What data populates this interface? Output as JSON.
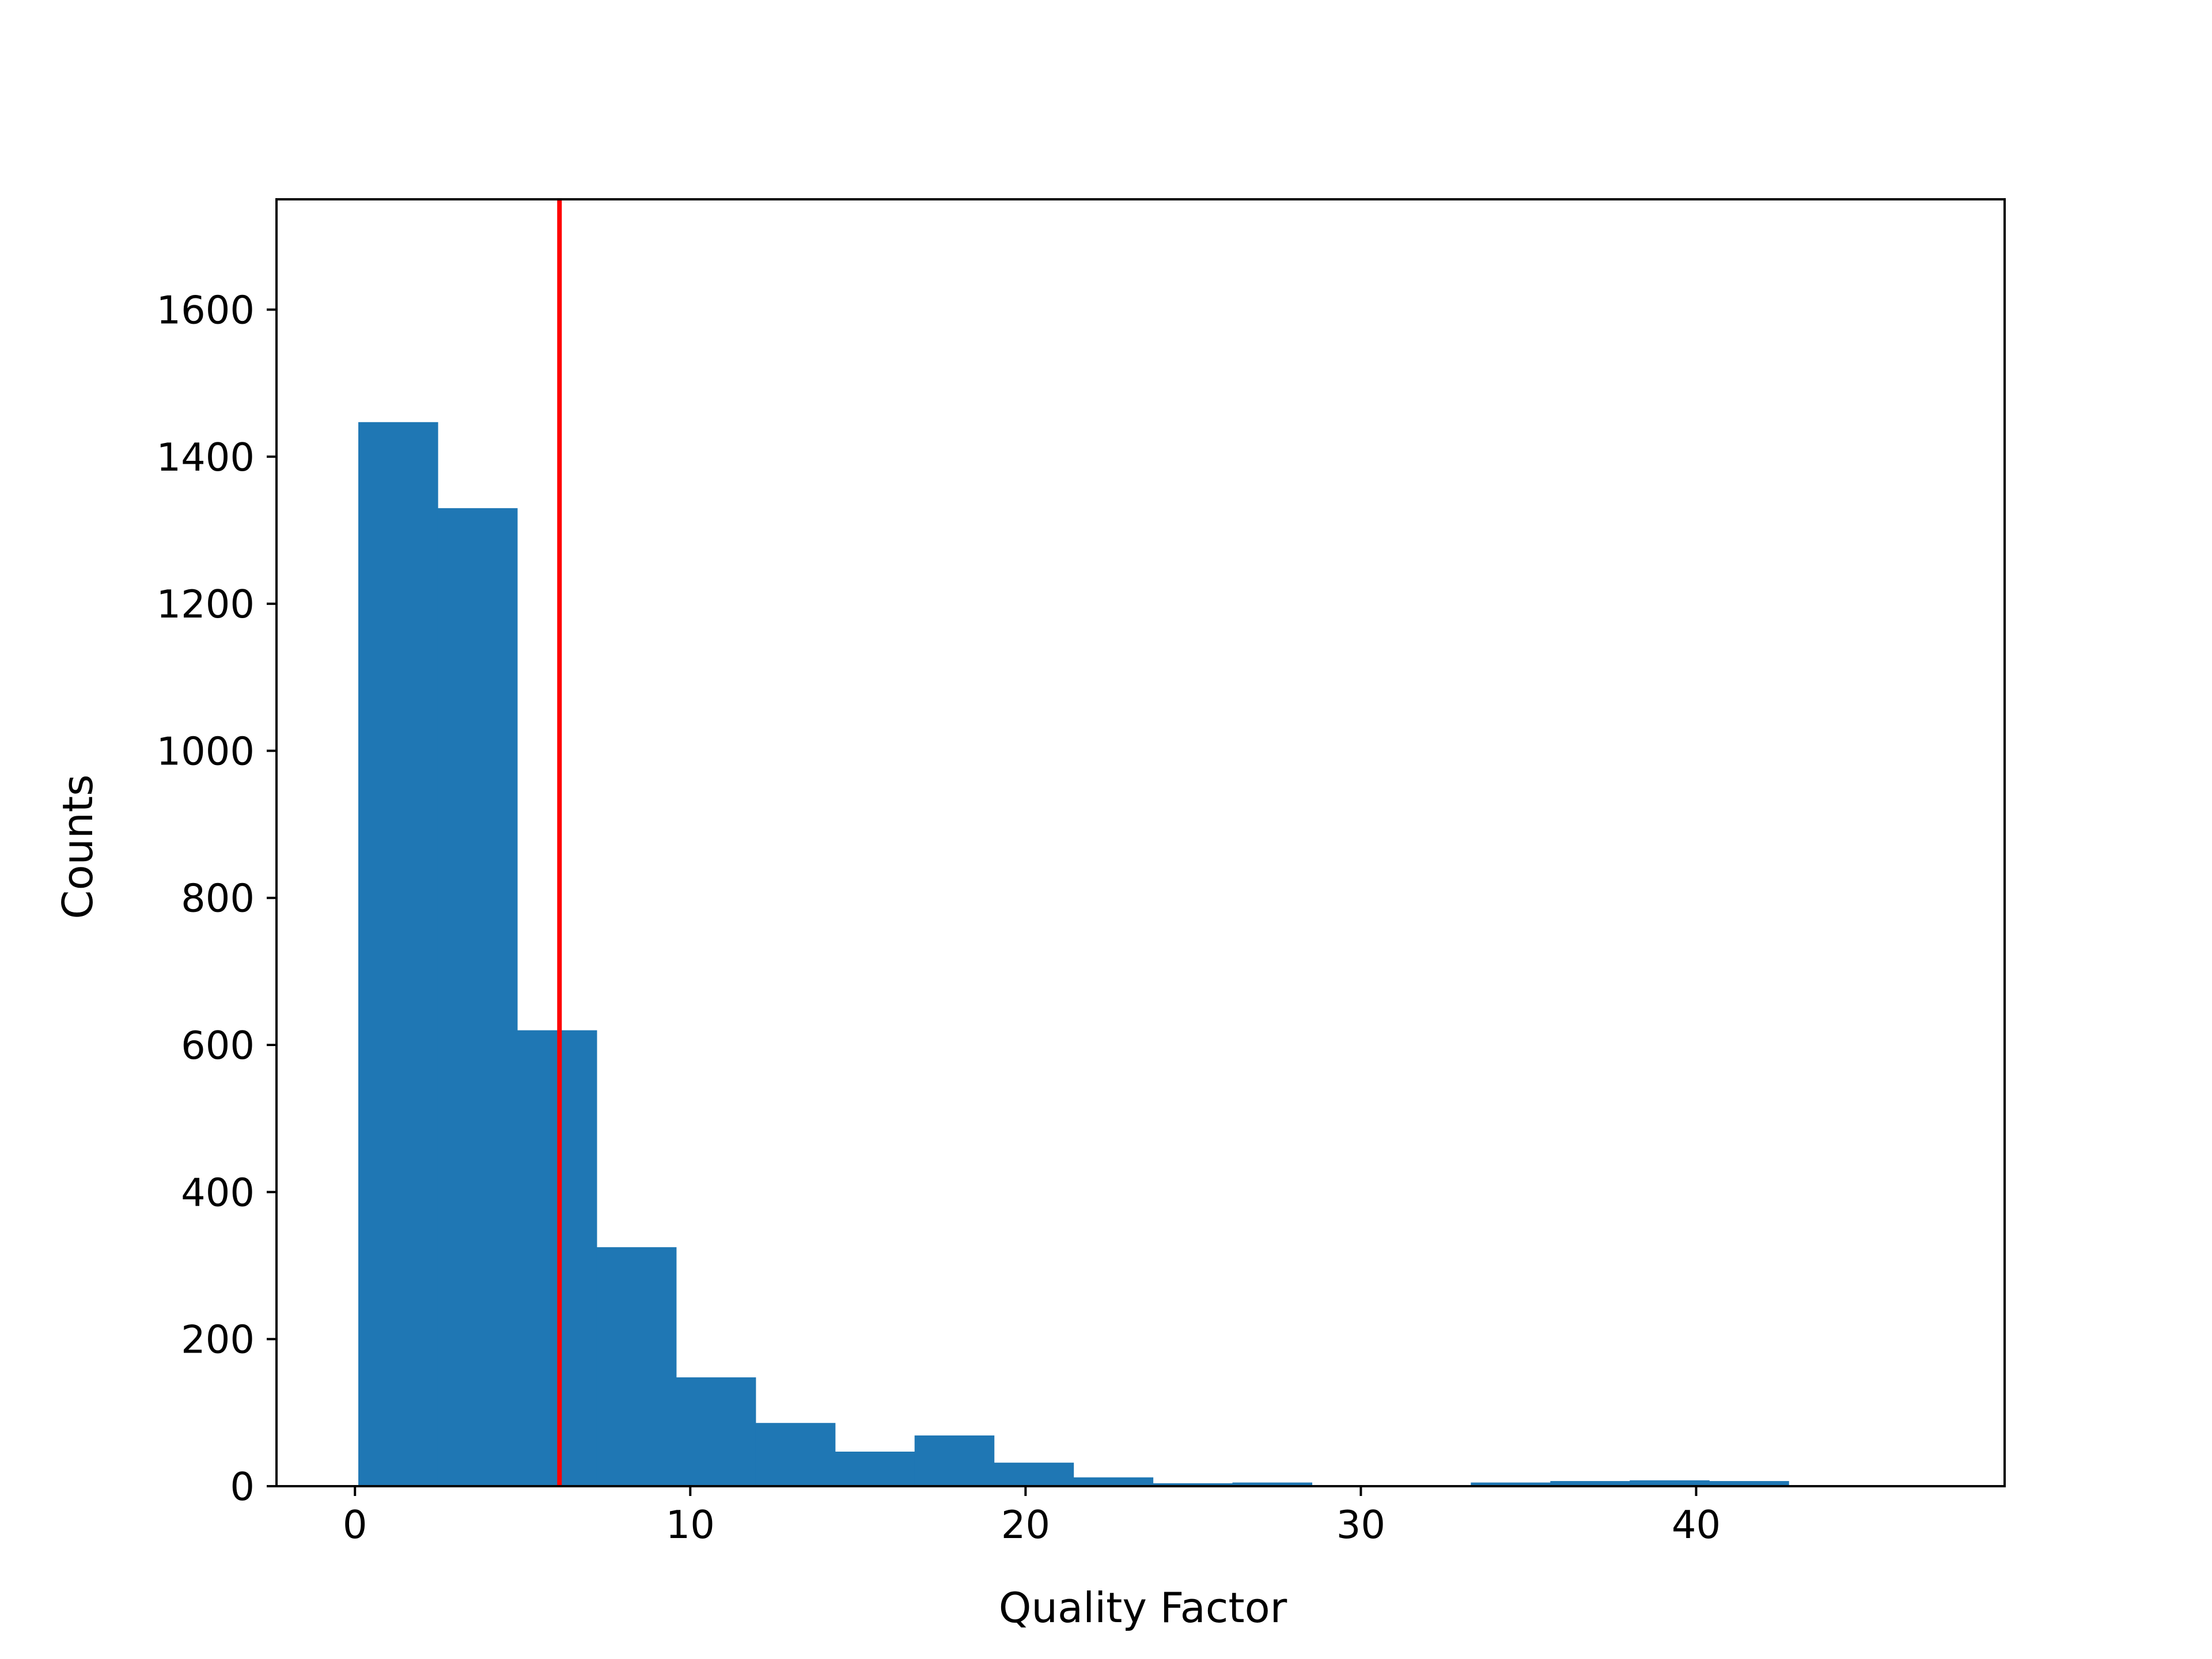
{
  "chart_data": {
    "type": "bar",
    "title": "",
    "xlabel": "Quality Factor",
    "ylabel": "Counts",
    "xlim": [
      -2.34,
      49.2
    ],
    "ylim": [
      0,
      1750
    ],
    "grid": false,
    "legend": null,
    "bar_color": "#1f77b4",
    "bins": {
      "edges": [
        0.1,
        2.47,
        4.84,
        7.21,
        9.58,
        11.95,
        14.32,
        16.69,
        19.06,
        21.43,
        23.8,
        26.17,
        28.54,
        30.91,
        33.28,
        35.65,
        38.02,
        40.39,
        42.76
      ],
      "counts": [
        1447,
        1330,
        620,
        325,
        148,
        86,
        47,
        69,
        32,
        12,
        4,
        5,
        0,
        0,
        5,
        7,
        8,
        7
      ]
    },
    "reference_line": {
      "x": 6.1,
      "color": "#ff0000"
    },
    "x_ticks": [
      "0",
      "10",
      "20",
      "30",
      "40"
    ],
    "x_tick_values": [
      0,
      10,
      20,
      30,
      40
    ],
    "y_ticks": [
      "0",
      "200",
      "400",
      "600",
      "800",
      "1000",
      "1200",
      "1400",
      "1600"
    ],
    "y_tick_values": [
      0,
      200,
      400,
      600,
      800,
      1000,
      1200,
      1400,
      1600
    ]
  }
}
